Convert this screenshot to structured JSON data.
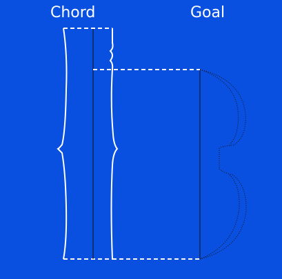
{
  "labels": {
    "chord": "Chord",
    "goal": "Goal"
  },
  "colors": {
    "background": "#0a50e0",
    "stroke": "#ffffff",
    "divider": "#111111"
  }
}
